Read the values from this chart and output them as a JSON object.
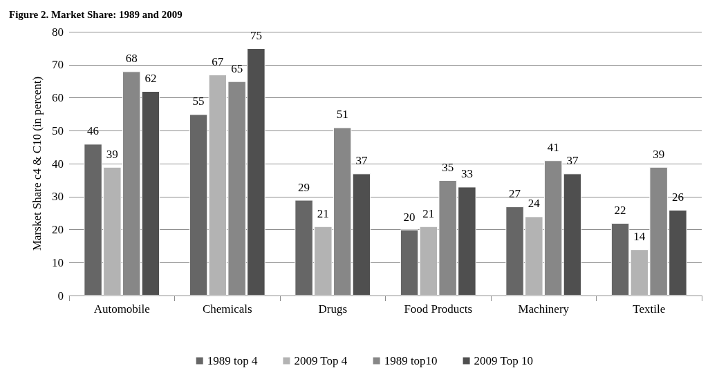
{
  "chart_data": {
    "type": "bar",
    "title": "Figure 2. Market Share: 1989 and 2009",
    "ylabel": "Marsket Share c4 & C10 (in percent)",
    "categories": [
      "Automobile",
      "Chemicals",
      "Drugs",
      "Food Products",
      "Machinery",
      "Textile"
    ],
    "series": [
      {
        "name": "1989 top 4",
        "color": "#666666",
        "values": [
          46,
          55,
          29,
          20,
          27,
          22
        ]
      },
      {
        "name": "2009 Top 4",
        "color": "#b3b3b3",
        "values": [
          39,
          67,
          21,
          21,
          24,
          14
        ]
      },
      {
        "name": "1989 top10",
        "color": "#878787",
        "values": [
          68,
          65,
          51,
          35,
          41,
          39
        ]
      },
      {
        "name": "2009 Top 10",
        "color": "#4f4f4f",
        "values": [
          62,
          75,
          37,
          33,
          37,
          26
        ]
      }
    ],
    "ylim": [
      0,
      80
    ],
    "yticks": [
      0,
      10,
      20,
      30,
      40,
      50,
      60,
      70,
      80
    ],
    "grid": "y",
    "legend": "bottom",
    "data_labels": true
  }
}
